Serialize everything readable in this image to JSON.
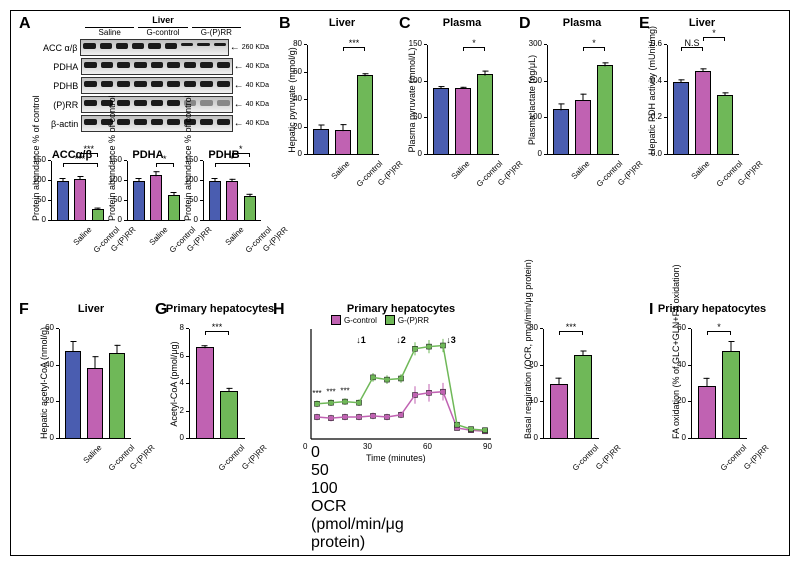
{
  "colors": {
    "saline": "#4a5db0",
    "gcontrol": "#c062b2",
    "gprr": "#6fb858",
    "border": "#000000"
  },
  "groups3": [
    "Saline",
    "G-control",
    "G-(P)RR"
  ],
  "groups2": [
    "G-control",
    "G-(P)RR"
  ],
  "panelA": {
    "label": "A",
    "header": "Liver",
    "sections": [
      "Saline",
      "G-control",
      "G-(P)RR"
    ],
    "blots": [
      {
        "name": "ACC α/β",
        "mw": "260 KDa"
      },
      {
        "name": "PDHA",
        "mw": "40 KDa"
      },
      {
        "name": "PDHB",
        "mw": "40 KDa"
      },
      {
        "name": "(P)RR",
        "mw": "40 KDa"
      },
      {
        "name": "β-actin",
        "mw": "40 KDa"
      }
    ],
    "quant": [
      {
        "title": "ACCα/β",
        "ylabel": "Protein abundance\n% of control",
        "ymax": 150,
        "ystep": 50,
        "values": [
          100,
          105,
          30
        ],
        "err": [
          10,
          10,
          6
        ],
        "sigs": [
          {
            "from": 0,
            "to": 2,
            "text": "***"
          },
          {
            "from": 1,
            "to": 2,
            "text": "***"
          }
        ]
      },
      {
        "title": "PDHA",
        "ylabel": "Protein abundance\n% of control",
        "ymax": 150,
        "ystep": 50,
        "values": [
          100,
          115,
          65
        ],
        "err": [
          10,
          12,
          10
        ],
        "sigs": [
          {
            "from": 1,
            "to": 2,
            "text": "*"
          }
        ]
      },
      {
        "title": "PDHB",
        "ylabel": "Protein abundance\n% of control",
        "ymax": 150,
        "ystep": 50,
        "values": [
          100,
          100,
          62
        ],
        "err": [
          10,
          8,
          8
        ],
        "sigs": [
          {
            "from": 0,
            "to": 2,
            "text": "*"
          },
          {
            "from": 1,
            "to": 2,
            "text": "*"
          }
        ]
      }
    ]
  },
  "panelB": {
    "label": "B",
    "title": "Liver",
    "ylabel": "Hepatic pyruvate (mmol/g)",
    "ymax": 80,
    "ystep": 20,
    "values": [
      19,
      18,
      58
    ],
    "err": [
      4,
      5,
      2
    ],
    "sigs": [
      {
        "from": 1,
        "to": 2,
        "text": "***"
      }
    ]
  },
  "panelC": {
    "label": "C",
    "title": "Plasma",
    "ylabel": "Plasma pyruvate (mmol/L)",
    "ymax": 150,
    "ystep": 50,
    "values": [
      92,
      91,
      110
    ],
    "err": [
      4,
      3,
      6
    ],
    "sigs": [
      {
        "from": 1,
        "to": 2,
        "text": "*"
      }
    ]
  },
  "panelD": {
    "label": "D",
    "title": "Plasma",
    "ylabel": "Plasma lactate (ng/μL)",
    "ymax": 300,
    "ystep": 100,
    "values": [
      125,
      150,
      245
    ],
    "err": [
      18,
      20,
      10
    ],
    "sigs": [
      {
        "from": 1,
        "to": 2,
        "text": "*"
      }
    ]
  },
  "panelE": {
    "label": "E",
    "title": "Liver",
    "ylabel": "Hepatic PDH activity (mUnit/mg)",
    "ymax": 0.6,
    "ystep": 0.2,
    "values": [
      0.4,
      0.46,
      0.33
    ],
    "err": [
      0.02,
      0.02,
      0.02
    ],
    "sigs": [
      {
        "from": 0,
        "to": 1,
        "text": "N.S"
      },
      {
        "from": 1,
        "to": 2,
        "text": "*"
      }
    ]
  },
  "panelF": {
    "label": "F",
    "title": "Liver",
    "ylabel": "Hepatic acetyl-CoA (nmol/g)",
    "ymax": 60,
    "ystep": 20,
    "values": [
      48,
      39,
      47
    ],
    "err": [
      6,
      7,
      5
    ],
    "sigs": []
  },
  "panelG": {
    "label": "G",
    "title": "Primary hepatocytes",
    "ylabel": "Acetyl-CoA (pmol/μg)",
    "ymax": 8,
    "ystep": 2,
    "values": [
      6.7,
      3.5
    ],
    "err": [
      0.2,
      0.3
    ],
    "sigs": [
      {
        "from": 0,
        "to": 1,
        "text": "***"
      }
    ]
  },
  "panelH": {
    "label": "H",
    "title": "Primary hepatocytes",
    "xlabel": "Time (minutes)",
    "ylabel": "OCR (pmol/min/μg protein)",
    "xmax": 90,
    "xstep": 30,
    "ymax": 100,
    "ystep": 50,
    "injections": [
      {
        "x": 25,
        "label": "1"
      },
      {
        "x": 45,
        "label": "2"
      },
      {
        "x": 70,
        "label": "3"
      }
    ],
    "series": [
      {
        "name": "G-control",
        "color": "#c062b2",
        "x": [
          3,
          10,
          17,
          24,
          31,
          38,
          45,
          52,
          59,
          66,
          73,
          80,
          87
        ],
        "y": [
          20,
          19,
          20,
          20,
          21,
          20,
          22,
          40,
          42,
          43,
          10,
          8,
          7
        ],
        "err": [
          3,
          3,
          3,
          3,
          3,
          3,
          3,
          8,
          8,
          8,
          2,
          2,
          2
        ]
      },
      {
        "name": "G-(P)RR",
        "color": "#6fb858",
        "x": [
          3,
          10,
          17,
          24,
          31,
          38,
          45,
          52,
          59,
          66,
          73,
          80,
          87
        ],
        "y": [
          32,
          33,
          34,
          33,
          56,
          54,
          55,
          82,
          84,
          85,
          13,
          9,
          8
        ],
        "err": [
          3,
          3,
          3,
          3,
          4,
          4,
          4,
          6,
          6,
          6,
          2,
          2,
          2
        ]
      }
    ],
    "sigpoints": [
      "***",
      "***",
      "***"
    ],
    "bar": {
      "ylabel": "Basal respiration\n(OCR, pmol/min/μg protein)",
      "ymax": 30,
      "ystep": 10,
      "values": [
        15,
        23
      ],
      "err": [
        2,
        1.5
      ],
      "sigs": [
        {
          "from": 0,
          "to": 1,
          "text": "***"
        }
      ]
    }
  },
  "panelI": {
    "label": "I",
    "title": "Primary hepatocytes",
    "ylabel": "FA oxidation\n(% of GLC+GLN+FA oxidation)",
    "ymax": 60,
    "ystep": 20,
    "values": [
      29,
      48
    ],
    "err": [
      5,
      6
    ],
    "sigs": [
      {
        "from": 0,
        "to": 1,
        "text": "*"
      }
    ]
  }
}
